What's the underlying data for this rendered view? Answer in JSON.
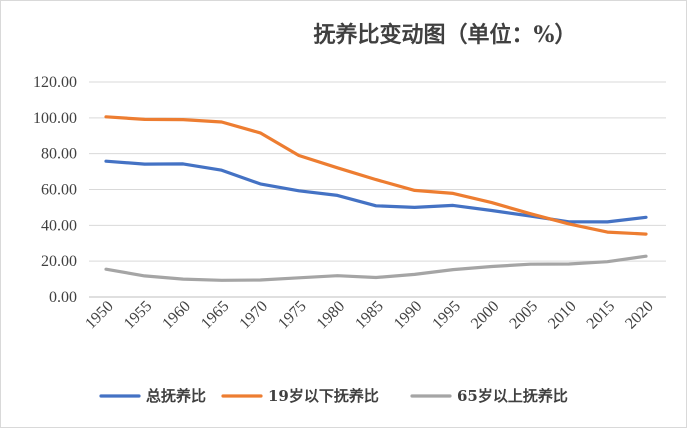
{
  "chart_data": {
    "type": "line",
    "title": "抚养比变动图（单位：%）",
    "x": [
      "1950",
      "1955",
      "1960",
      "1965",
      "1970",
      "1975",
      "1980",
      "1985",
      "1990",
      "1995",
      "2000",
      "2005",
      "2010",
      "2015",
      "2020"
    ],
    "ylim": [
      0,
      120
    ],
    "yticks": [
      "0.00",
      "20.00",
      "40.00",
      "60.00",
      "80.00",
      "100.00",
      "120.00"
    ],
    "grid": true,
    "legend_position": "bottom",
    "series": [
      {
        "name": "总抚养比",
        "color": "#4472c4",
        "values": [
          75.8,
          74.2,
          74.3,
          70.8,
          63.1,
          59.3,
          56.7,
          50.9,
          50.0,
          51.1,
          48.3,
          45.2,
          42.0,
          41.9,
          44.5
        ]
      },
      {
        "name": "19岁以下抚养比",
        "color": "#ed7d31",
        "values": [
          100.6,
          99.1,
          99.0,
          97.7,
          91.6,
          79.0,
          72.1,
          65.5,
          59.5,
          57.8,
          52.7,
          46.5,
          40.8,
          36.2,
          35.1
        ]
      },
      {
        "name": "65岁以上抚养比",
        "color": "#a5a5a5",
        "values": [
          15.5,
          11.8,
          10.0,
          9.3,
          9.5,
          10.7,
          11.9,
          10.9,
          12.6,
          15.3,
          17.0,
          18.3,
          18.4,
          19.7,
          22.8
        ]
      }
    ]
  }
}
